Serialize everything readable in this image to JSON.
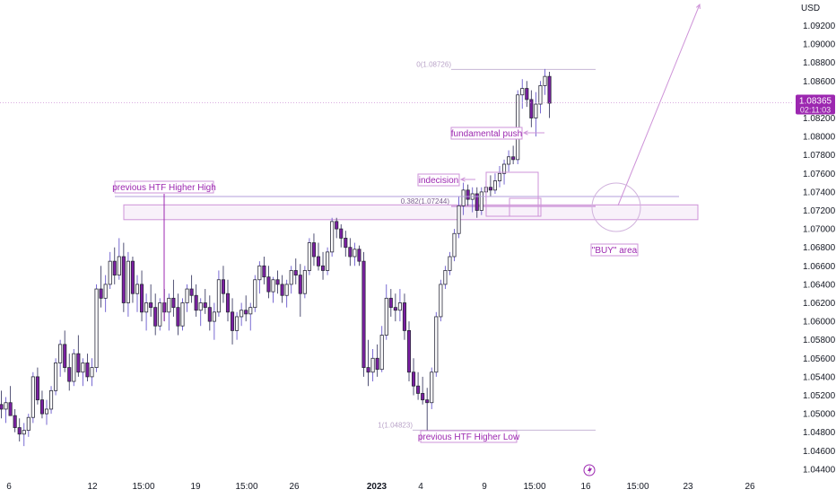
{
  "chart_data": {
    "type": "candlestick",
    "currency": "USD",
    "ylim": [
      1.0435,
      1.0935
    ],
    "y_ticks": [
      1.092,
      1.09,
      1.088,
      1.086,
      1.084,
      1.082,
      1.08,
      1.078,
      1.076,
      1.074,
      1.072,
      1.07,
      1.068,
      1.066,
      1.064,
      1.062,
      1.06,
      1.058,
      1.056,
      1.054,
      1.052,
      1.05,
      1.048,
      1.046,
      1.044
    ],
    "y_tick_labels": [
      "1.09200",
      "1.09000",
      "1.08800",
      "1.08600",
      "1.08400",
      "1.08200",
      "1.08000",
      "1.07800",
      "1.07600",
      "1.07400",
      "1.07200",
      "1.07000",
      "1.06800",
      "1.06600",
      "1.06400",
      "1.06200",
      "1.06000",
      "1.05800",
      "1.05600",
      "1.05400",
      "1.05200",
      "1.05000",
      "1.04800",
      "1.04600",
      "1.04400"
    ],
    "x_ticks": [
      {
        "label": "6",
        "bold": false
      },
      {
        "label": "12",
        "bold": false
      },
      {
        "label": "15:00",
        "bold": false
      },
      {
        "label": "19",
        "bold": false
      },
      {
        "label": "15:00",
        "bold": false
      },
      {
        "label": "26",
        "bold": false
      },
      {
        "label": "2023",
        "bold": true
      },
      {
        "label": "4",
        "bold": false
      },
      {
        "label": "9",
        "bold": false
      },
      {
        "label": "15:00",
        "bold": false
      },
      {
        "label": "16",
        "bold": false
      },
      {
        "label": "15:00",
        "bold": false
      },
      {
        "label": "23",
        "bold": false
      },
      {
        "label": "26",
        "bold": false
      }
    ],
    "current_price": "1.08365",
    "countdown": "02:11:03",
    "fib_levels": [
      {
        "label": "0(1.08726)",
        "value": 1.08726
      },
      {
        "label": "0.382(1.07244)",
        "value": 1.07244
      },
      {
        "label": "1(1.04823)",
        "value": 1.04823
      }
    ],
    "annotations": {
      "hh_label": "previous HTF Higher High",
      "hl_label": "previous HTF Higher Low",
      "indecision_label": "indecision",
      "fundamental_label": "fundamental push",
      "buy_label": "\"BUY\" area"
    },
    "buy_zone": [
      1.071,
      1.0726
    ],
    "hh_level": 1.0735,
    "ohlc": [
      [
        1.051,
        1.0525,
        1.0495,
        1.0505
      ],
      [
        1.0505,
        1.0518,
        1.049,
        1.0512
      ],
      [
        1.0512,
        1.053,
        1.05,
        1.0498
      ],
      [
        1.0498,
        1.0505,
        1.048,
        1.0485
      ],
      [
        1.0485,
        1.0495,
        1.047,
        1.0478
      ],
      [
        1.0478,
        1.049,
        1.0465,
        1.0482
      ],
      [
        1.0482,
        1.05,
        1.0475,
        1.0496
      ],
      [
        1.0496,
        1.0545,
        1.049,
        1.054
      ],
      [
        1.054,
        1.055,
        1.051,
        1.0515
      ],
      [
        1.0515,
        1.0525,
        1.0495,
        1.05
      ],
      [
        1.05,
        1.0515,
        1.0488,
        1.0505
      ],
      [
        1.0505,
        1.053,
        1.05,
        1.0525
      ],
      [
        1.0525,
        1.056,
        1.052,
        1.0555
      ],
      [
        1.0555,
        1.058,
        1.054,
        1.0575
      ],
      [
        1.0575,
        1.059,
        1.0545,
        1.055
      ],
      [
        1.055,
        1.0565,
        1.0525,
        1.0535
      ],
      [
        1.0535,
        1.057,
        1.053,
        1.0565
      ],
      [
        1.0565,
        1.0585,
        1.054,
        1.0545
      ],
      [
        1.0545,
        1.056,
        1.053,
        1.0555
      ],
      [
        1.0555,
        1.0565,
        1.0535,
        1.054
      ],
      [
        1.054,
        1.056,
        1.053,
        1.055
      ],
      [
        1.055,
        1.064,
        1.0545,
        1.0635
      ],
      [
        1.0635,
        1.066,
        1.0615,
        1.0625
      ],
      [
        1.0625,
        1.065,
        1.061,
        1.064
      ],
      [
        1.064,
        1.0675,
        1.0635,
        1.0665
      ],
      [
        1.0665,
        1.068,
        1.064,
        1.065
      ],
      [
        1.065,
        1.069,
        1.0645,
        1.067
      ],
      [
        1.067,
        1.0685,
        1.061,
        1.062
      ],
      [
        1.062,
        1.0675,
        1.0605,
        1.0665
      ],
      [
        1.0665,
        1.067,
        1.062,
        1.063
      ],
      [
        1.063,
        1.065,
        1.061,
        1.064
      ],
      [
        1.064,
        1.0655,
        1.06,
        1.061
      ],
      [
        1.061,
        1.063,
        1.059,
        1.062
      ],
      [
        1.062,
        1.064,
        1.0605,
        1.0615
      ],
      [
        1.0615,
        1.063,
        1.0585,
        1.0595
      ],
      [
        1.0595,
        1.0625,
        1.059,
        1.062
      ],
      [
        1.062,
        1.0635,
        1.06,
        1.061
      ],
      [
        1.061,
        1.063,
        1.059,
        1.0625
      ],
      [
        1.0625,
        1.0645,
        1.0605,
        1.0615
      ],
      [
        1.0615,
        1.063,
        1.0585,
        1.0595
      ],
      [
        1.0595,
        1.0625,
        1.059,
        1.062
      ],
      [
        1.062,
        1.064,
        1.061,
        1.0635
      ],
      [
        1.0635,
        1.065,
        1.062,
        1.0628
      ],
      [
        1.0628,
        1.064,
        1.0605,
        1.0612
      ],
      [
        1.0612,
        1.0625,
        1.0595,
        1.062
      ],
      [
        1.062,
        1.0635,
        1.0608,
        1.0615
      ],
      [
        1.0615,
        1.0628,
        1.059,
        1.06
      ],
      [
        1.06,
        1.062,
        1.058,
        1.061
      ],
      [
        1.061,
        1.0655,
        1.0605,
        1.0645
      ],
      [
        1.0645,
        1.066,
        1.062,
        1.063
      ],
      [
        1.063,
        1.0645,
        1.06,
        1.061
      ],
      [
        1.061,
        1.0625,
        1.0575,
        1.059
      ],
      [
        1.059,
        1.061,
        1.058,
        1.0605
      ],
      [
        1.0605,
        1.062,
        1.0595,
        1.0612
      ],
      [
        1.0612,
        1.0628,
        1.06,
        1.0608
      ],
      [
        1.0608,
        1.062,
        1.059,
        1.0615
      ],
      [
        1.0615,
        1.065,
        1.061,
        1.0645
      ],
      [
        1.0645,
        1.0665,
        1.063,
        1.066
      ],
      [
        1.066,
        1.067,
        1.064,
        1.0648
      ],
      [
        1.0648,
        1.066,
        1.0625,
        1.0632
      ],
      [
        1.0632,
        1.0648,
        1.062,
        1.0645
      ],
      [
        1.0645,
        1.0655,
        1.063,
        1.064
      ],
      [
        1.064,
        1.065,
        1.062,
        1.0628
      ],
      [
        1.0628,
        1.0645,
        1.0615,
        1.064
      ],
      [
        1.064,
        1.066,
        1.063,
        1.0655
      ],
      [
        1.0655,
        1.0668,
        1.064,
        1.065
      ],
      [
        1.065,
        1.0662,
        1.0605,
        1.063
      ],
      [
        1.063,
        1.066,
        1.0625,
        1.0655
      ],
      [
        1.0655,
        1.069,
        1.065,
        1.0685
      ],
      [
        1.0685,
        1.0695,
        1.066,
        1.067
      ],
      [
        1.067,
        1.0685,
        1.0655,
        1.066
      ],
      [
        1.066,
        1.0675,
        1.0645,
        1.0655
      ],
      [
        1.0655,
        1.068,
        1.065,
        1.0675
      ],
      [
        1.0675,
        1.0712,
        1.067,
        1.0708
      ],
      [
        1.0708,
        1.0712,
        1.069,
        1.07
      ],
      [
        1.07,
        1.0705,
        1.068,
        1.069
      ],
      [
        1.069,
        1.0698,
        1.067,
        1.068
      ],
      [
        1.068,
        1.069,
        1.066,
        1.067
      ],
      [
        1.067,
        1.0685,
        1.066,
        1.0678
      ],
      [
        1.0678,
        1.0682,
        1.066,
        1.0665
      ],
      [
        1.0665,
        1.0675,
        1.054,
        1.055
      ],
      [
        1.055,
        1.058,
        1.053,
        1.0545
      ],
      [
        1.0545,
        1.057,
        1.0535,
        1.056
      ],
      [
        1.056,
        1.0575,
        1.054,
        1.0548
      ],
      [
        1.0548,
        1.0595,
        1.0545,
        1.0585
      ],
      [
        1.0585,
        1.064,
        1.058,
        1.0625
      ],
      [
        1.0625,
        1.0635,
        1.0605,
        1.0615
      ],
      [
        1.0615,
        1.063,
        1.06,
        1.0612
      ],
      [
        1.0612,
        1.0635,
        1.06,
        1.062
      ],
      [
        1.062,
        1.063,
        1.058,
        1.059
      ],
      [
        1.059,
        1.06,
        1.0535,
        1.0545
      ],
      [
        1.0545,
        1.056,
        1.052,
        1.053
      ],
      [
        1.053,
        1.0545,
        1.0515,
        1.0522
      ],
      [
        1.0522,
        1.054,
        1.051,
        1.0515
      ],
      [
        1.0515,
        1.0528,
        1.0482,
        1.0512
      ],
      [
        1.0512,
        1.055,
        1.0505,
        1.0545
      ],
      [
        1.0545,
        1.061,
        1.054,
        1.0605
      ],
      [
        1.0605,
        1.0645,
        1.06,
        1.064
      ],
      [
        1.064,
        1.066,
        1.0635,
        1.0655
      ],
      [
        1.0655,
        1.0675,
        1.065,
        1.067
      ],
      [
        1.067,
        1.07,
        1.0665,
        1.0695
      ],
      [
        1.0695,
        1.0735,
        1.069,
        1.0725
      ],
      [
        1.0725,
        1.075,
        1.0715,
        1.0742
      ],
      [
        1.0742,
        1.0748,
        1.0725,
        1.0732
      ],
      [
        1.0732,
        1.0745,
        1.0718,
        1.0738
      ],
      [
        1.0738,
        1.0745,
        1.0712,
        1.072
      ],
      [
        1.072,
        1.0745,
        1.0715,
        1.074
      ],
      [
        1.074,
        1.0752,
        1.073,
        1.0745
      ],
      [
        1.0745,
        1.0758,
        1.0735,
        1.0742
      ],
      [
        1.0742,
        1.076,
        1.0738,
        1.0752
      ],
      [
        1.0752,
        1.0768,
        1.0745,
        1.076
      ],
      [
        1.076,
        1.0775,
        1.0748,
        1.077
      ],
      [
        1.077,
        1.0785,
        1.0762,
        1.0778
      ],
      [
        1.0778,
        1.079,
        1.077,
        1.0775
      ],
      [
        1.0775,
        1.085,
        1.077,
        1.0845
      ],
      [
        1.0845,
        1.0862,
        1.083,
        1.0852
      ],
      [
        1.0852,
        1.086,
        1.0832,
        1.084
      ],
      [
        1.084,
        1.085,
        1.081,
        1.082
      ],
      [
        1.082,
        1.0848,
        1.08,
        1.0835
      ],
      [
        1.0835,
        1.086,
        1.0825,
        1.0855
      ],
      [
        1.0855,
        1.0873,
        1.0845,
        1.0865
      ],
      [
        1.0865,
        1.087,
        1.082,
        1.0836
      ]
    ]
  }
}
